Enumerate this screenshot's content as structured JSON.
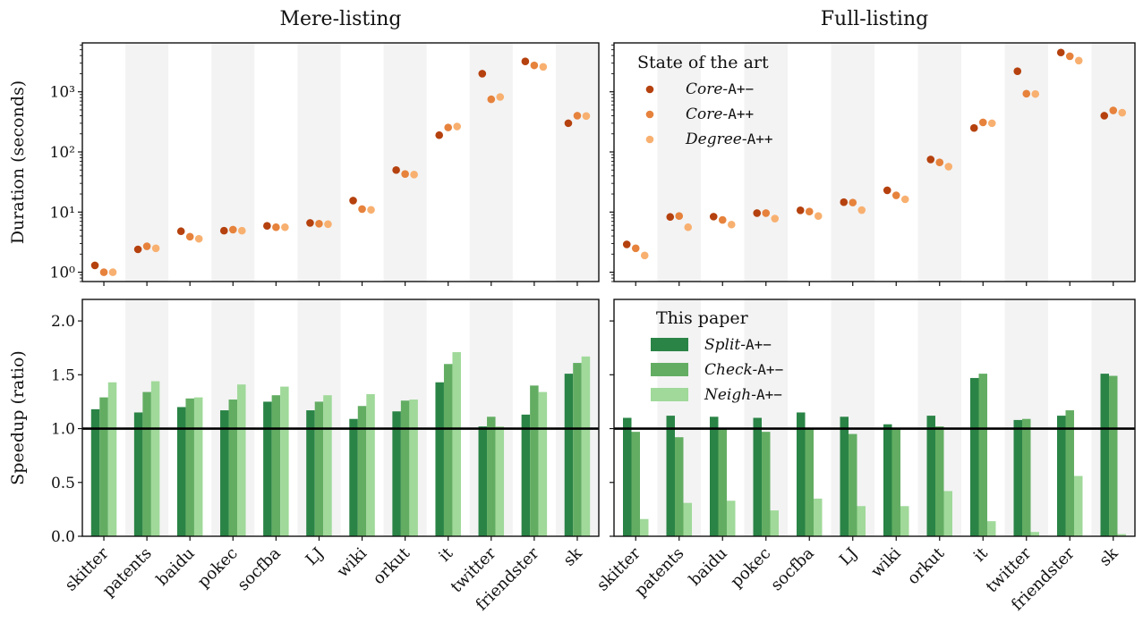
{
  "categories": [
    "skitter",
    "patents",
    "baidu",
    "pokec",
    "socfba",
    "LJ",
    "wiki",
    "orkut",
    "it",
    "twitter",
    "friendster",
    "sk"
  ],
  "colors": {
    "core_amp": "#b5410e",
    "core_pp": "#e6823c",
    "degree_pp": "#f8b070",
    "split": "#2a8446",
    "check": "#63ad63",
    "neigh": "#a0d99a",
    "band": "#f3f3f3"
  },
  "panel_titles": [
    "Mere-listing",
    "Full-listing"
  ],
  "top_ylabel": "Duration (seconds)",
  "bottom_ylabel": "Speedup (ratio)",
  "top_ticks": [
    "10⁰",
    "10¹",
    "10²",
    "10³"
  ],
  "bottom_ticks": [
    "0.0",
    "0.5",
    "1.0",
    "1.5",
    "2.0"
  ],
  "legend_top": {
    "title": "State of the art",
    "items": [
      {
        "prefix": "Core-",
        "mono": "A+−",
        "color_key": "core_amp"
      },
      {
        "prefix": "Core-",
        "mono": "A++",
        "color_key": "core_pp"
      },
      {
        "prefix": "Degree-",
        "mono": "A++",
        "color_key": "degree_pp"
      }
    ]
  },
  "legend_bottom": {
    "title": "This paper",
    "items": [
      {
        "prefix": "Split-",
        "mono": "A+−",
        "color_key": "split"
      },
      {
        "prefix": "Check-",
        "mono": "A+−",
        "color_key": "check"
      },
      {
        "prefix": "Neigh-",
        "mono": "A+−",
        "color_key": "neigh"
      }
    ]
  },
  "chart_data": [
    {
      "type": "scatter",
      "title": "Mere-listing",
      "ylabel": "Duration (seconds)",
      "yscale": "log",
      "ylim": [
        0.7,
        6500
      ],
      "categories": [
        "skitter",
        "patents",
        "baidu",
        "pokec",
        "socfba",
        "LJ",
        "wiki",
        "orkut",
        "it",
        "twitter",
        "friendster",
        "sk"
      ],
      "series": [
        {
          "name": "Core-A+−",
          "values": [
            1.3,
            2.4,
            4.8,
            4.9,
            5.9,
            6.6,
            15.5,
            50,
            190,
            2000,
            3200,
            300
          ]
        },
        {
          "name": "Core-A++",
          "values": [
            1.0,
            2.7,
            3.9,
            5.1,
            5.6,
            6.4,
            11.2,
            43,
            255,
            750,
            2750,
            400
          ]
        },
        {
          "name": "Degree-A++",
          "values": [
            1.0,
            2.5,
            3.6,
            4.9,
            5.6,
            6.3,
            10.9,
            42,
            265,
            820,
            2600,
            395
          ]
        }
      ]
    },
    {
      "type": "scatter",
      "title": "Full-listing",
      "yscale": "log",
      "ylim": [
        0.7,
        6500
      ],
      "categories": [
        "skitter",
        "patents",
        "baidu",
        "pokec",
        "socfba",
        "LJ",
        "wiki",
        "orkut",
        "it",
        "twitter",
        "friendster",
        "sk"
      ],
      "legend": {
        "title": "State of the art",
        "placement": "top-left"
      },
      "series": [
        {
          "name": "Core-A+−",
          "values": [
            2.9,
            8.3,
            8.4,
            9.6,
            10.7,
            14.6,
            23,
            75,
            250,
            2200,
            4500,
            400
          ]
        },
        {
          "name": "Core-A++",
          "values": [
            2.5,
            8.6,
            7.4,
            9.6,
            10.2,
            14.4,
            19,
            67,
            310,
            930,
            3900,
            490
          ]
        },
        {
          "name": "Degree-A++",
          "values": [
            1.9,
            5.6,
            6.2,
            7.8,
            8.6,
            10.8,
            16.3,
            57,
            300,
            920,
            3300,
            450
          ]
        }
      ]
    },
    {
      "type": "bar",
      "ylabel": "Speedup (ratio)",
      "ylim": [
        0,
        2.2
      ],
      "reference_line": 1.0,
      "categories": [
        "skitter",
        "patents",
        "baidu",
        "pokec",
        "socfba",
        "LJ",
        "wiki",
        "orkut",
        "it",
        "twitter",
        "friendster",
        "sk"
      ],
      "series": [
        {
          "name": "Split-A+−",
          "values": [
            1.18,
            1.15,
            1.2,
            1.17,
            1.25,
            1.17,
            1.09,
            1.16,
            1.43,
            1.02,
            1.13,
            1.51
          ]
        },
        {
          "name": "Check-A+−",
          "values": [
            1.29,
            1.34,
            1.28,
            1.27,
            1.31,
            1.25,
            1.21,
            1.26,
            1.6,
            1.11,
            1.4,
            1.61
          ]
        },
        {
          "name": "Neigh-A+−",
          "values": [
            1.43,
            1.44,
            1.29,
            1.41,
            1.39,
            1.31,
            1.32,
            1.27,
            1.71,
            1.02,
            1.34,
            1.67
          ]
        }
      ]
    },
    {
      "type": "bar",
      "ylim": [
        0,
        2.2
      ],
      "reference_line": 1.0,
      "categories": [
        "skitter",
        "patents",
        "baidu",
        "pokec",
        "socfba",
        "LJ",
        "wiki",
        "orkut",
        "it",
        "twitter",
        "friendster",
        "sk"
      ],
      "legend": {
        "title": "This paper",
        "placement": "top-left"
      },
      "series": [
        {
          "name": "Split-A+−",
          "values": [
            1.1,
            1.12,
            1.11,
            1.1,
            1.15,
            1.11,
            1.04,
            1.12,
            1.47,
            1.08,
            1.12,
            1.51
          ]
        },
        {
          "name": "Check-A+−",
          "values": [
            0.97,
            0.92,
            1.0,
            0.97,
            1.0,
            0.95,
            1.0,
            1.02,
            1.51,
            1.09,
            1.17,
            1.49
          ]
        },
        {
          "name": "Neigh-A+−",
          "values": [
            0.16,
            0.31,
            0.33,
            0.24,
            0.35,
            0.28,
            0.28,
            0.42,
            0.14,
            0.04,
            0.56,
            0.02
          ]
        }
      ]
    }
  ]
}
